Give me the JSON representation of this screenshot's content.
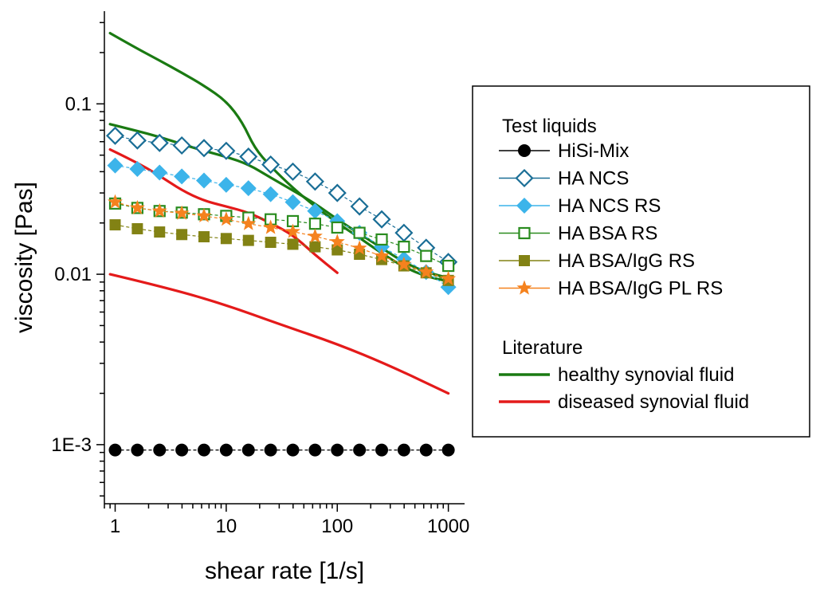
{
  "chart_data": {
    "type": "line",
    "title": "",
    "xlabel": "shear rate [1/s]",
    "ylabel": "viscosity [Pas]",
    "x_scale": "log",
    "y_scale": "log",
    "xlim": [
      0.8,
      1400
    ],
    "ylim": [
      0.00045,
      0.35
    ],
    "x_ticks": [
      {
        "value": 1,
        "label": "1"
      },
      {
        "value": 10,
        "label": "10"
      },
      {
        "value": 100,
        "label": "100"
      },
      {
        "value": 1000,
        "label": "1000"
      }
    ],
    "y_ticks": [
      {
        "value": 0.001,
        "label": "1E-3"
      },
      {
        "value": 0.01,
        "label": "0.01"
      },
      {
        "value": 0.1,
        "label": "0.1"
      }
    ],
    "legend": {
      "position": "right",
      "group_titles": {
        "test": "Test liquids",
        "literature": "Literature"
      }
    },
    "series": [
      {
        "name": "HiSi-Mix",
        "group": "test",
        "marker": "circle-filled",
        "color": "#000000",
        "line_color": "#000000",
        "x": [
          1,
          1.585,
          2.512,
          3.981,
          6.31,
          10,
          15.85,
          25.12,
          39.81,
          63.1,
          100,
          158.5,
          251.2,
          398.1,
          631,
          1000
        ],
        "y": [
          0.00093,
          0.00093,
          0.00093,
          0.00093,
          0.00093,
          0.00093,
          0.00093,
          0.00093,
          0.00093,
          0.00093,
          0.00093,
          0.00093,
          0.00093,
          0.00093,
          0.00093,
          0.00093
        ]
      },
      {
        "name": "HA NCS",
        "group": "test",
        "marker": "diamond-open",
        "color": "#1a6e96",
        "line_color": "#1a6e96",
        "x": [
          1,
          1.585,
          2.512,
          3.981,
          6.31,
          10,
          15.85,
          25.12,
          39.81,
          63.1,
          100,
          158.5,
          251.2,
          398.1,
          631,
          1000
        ],
        "y": [
          0.065,
          0.061,
          0.059,
          0.057,
          0.055,
          0.053,
          0.049,
          0.044,
          0.04,
          0.035,
          0.03,
          0.025,
          0.021,
          0.0175,
          0.0143,
          0.0118
        ]
      },
      {
        "name": "HA NCS RS",
        "group": "test",
        "marker": "diamond-filled",
        "color": "#3cb4ea",
        "line_color": "#3cb4ea",
        "x": [
          1,
          1.585,
          2.512,
          3.981,
          6.31,
          10,
          15.85,
          25.12,
          39.81,
          63.1,
          100,
          158.5,
          251.2,
          398.1,
          631,
          1000
        ],
        "y": [
          0.0435,
          0.0415,
          0.0395,
          0.0375,
          0.0355,
          0.0335,
          0.032,
          0.0295,
          0.0265,
          0.0235,
          0.0205,
          0.0175,
          0.0145,
          0.0123,
          0.0103,
          0.0084
        ]
      },
      {
        "name": "HA BSA RS",
        "group": "test",
        "marker": "square-open",
        "color": "#2a8c1f",
        "line_color": "#2a8c1f",
        "x": [
          1,
          1.585,
          2.512,
          3.981,
          6.31,
          10,
          15.85,
          25.12,
          39.81,
          63.1,
          100,
          158.5,
          251.2,
          398.1,
          631,
          1000
        ],
        "y": [
          0.026,
          0.0245,
          0.0235,
          0.023,
          0.0225,
          0.022,
          0.0215,
          0.021,
          0.0205,
          0.0198,
          0.0188,
          0.0175,
          0.016,
          0.0145,
          0.0128,
          0.0112
        ]
      },
      {
        "name": "HA BSA/IgG RS",
        "group": "test",
        "marker": "square-filled",
        "color": "#828214",
        "line_color": "#828214",
        "x": [
          1,
          1.585,
          2.512,
          3.981,
          6.31,
          10,
          15.85,
          25.12,
          39.81,
          63.1,
          100,
          158.5,
          251.2,
          398.1,
          631,
          1000
        ],
        "y": [
          0.0195,
          0.0185,
          0.0177,
          0.0171,
          0.0166,
          0.0162,
          0.0158,
          0.0154,
          0.015,
          0.0145,
          0.0139,
          0.0131,
          0.0122,
          0.0112,
          0.0102,
          0.0092
        ]
      },
      {
        "name": "HA BSA/IgG PL RS",
        "group": "test",
        "marker": "star-filled",
        "color": "#f5821e",
        "line_color": "#f5821e",
        "x": [
          1,
          1.585,
          2.512,
          3.981,
          6.31,
          10,
          15.85,
          25.12,
          39.81,
          63.1,
          100,
          158.5,
          251.2,
          398.1,
          631,
          1000
        ],
        "y": [
          0.0265,
          0.0245,
          0.0235,
          0.0228,
          0.022,
          0.021,
          0.0198,
          0.0188,
          0.0178,
          0.0167,
          0.0155,
          0.0142,
          0.0128,
          0.0114,
          0.0103,
          0.0094
        ]
      },
      {
        "name": "healthy synovial fluid",
        "group": "literature",
        "marker": "none",
        "color": "#1a7a12",
        "line_color": "#1a7a12",
        "x": [
          0.9,
          1.5,
          2.5,
          4,
          6.3,
          10,
          14,
          18,
          25,
          40,
          63,
          100,
          160,
          250,
          400,
          630,
          1000
        ],
        "y": [
          0.26,
          0.215,
          0.18,
          0.152,
          0.128,
          0.104,
          0.078,
          0.055,
          0.043,
          0.032,
          0.025,
          0.02,
          0.0163,
          0.0133,
          0.011,
          0.0097,
          0.0091
        ]
      },
      {
        "name": "healthy synovial fluid",
        "group": "literature",
        "marker": "none",
        "color": "#1a7a12",
        "line_color": "#1a7a12",
        "x": [
          0.9,
          1.5,
          2.5,
          4,
          6.3,
          10,
          16,
          25,
          40,
          63,
          100,
          160,
          250,
          400,
          630,
          1000
        ],
        "y": [
          0.076,
          0.07,
          0.064,
          0.058,
          0.053,
          0.049,
          0.044,
          0.037,
          0.031,
          0.026,
          0.021,
          0.0172,
          0.0143,
          0.0117,
          0.0103,
          0.0095
        ]
      },
      {
        "name": "diseased synovial fluid",
        "group": "literature",
        "marker": "none",
        "color": "#e41a1a",
        "line_color": "#e41a1a",
        "x": [
          0.9,
          1.5,
          2.5,
          4,
          6.3,
          10,
          16,
          25,
          40,
          63,
          100
        ],
        "y": [
          0.054,
          0.046,
          0.038,
          0.031,
          0.027,
          0.025,
          0.023,
          0.02,
          0.017,
          0.013,
          0.0102
        ]
      },
      {
        "name": "diseased synovial fluid",
        "group": "literature",
        "marker": "none",
        "color": "#e41a1a",
        "line_color": "#e41a1a",
        "x": [
          0.9,
          3,
          10,
          30,
          100,
          300,
          1000
        ],
        "y": [
          0.01,
          0.0083,
          0.0066,
          0.0051,
          0.0039,
          0.0029,
          0.002
        ]
      }
    ]
  }
}
